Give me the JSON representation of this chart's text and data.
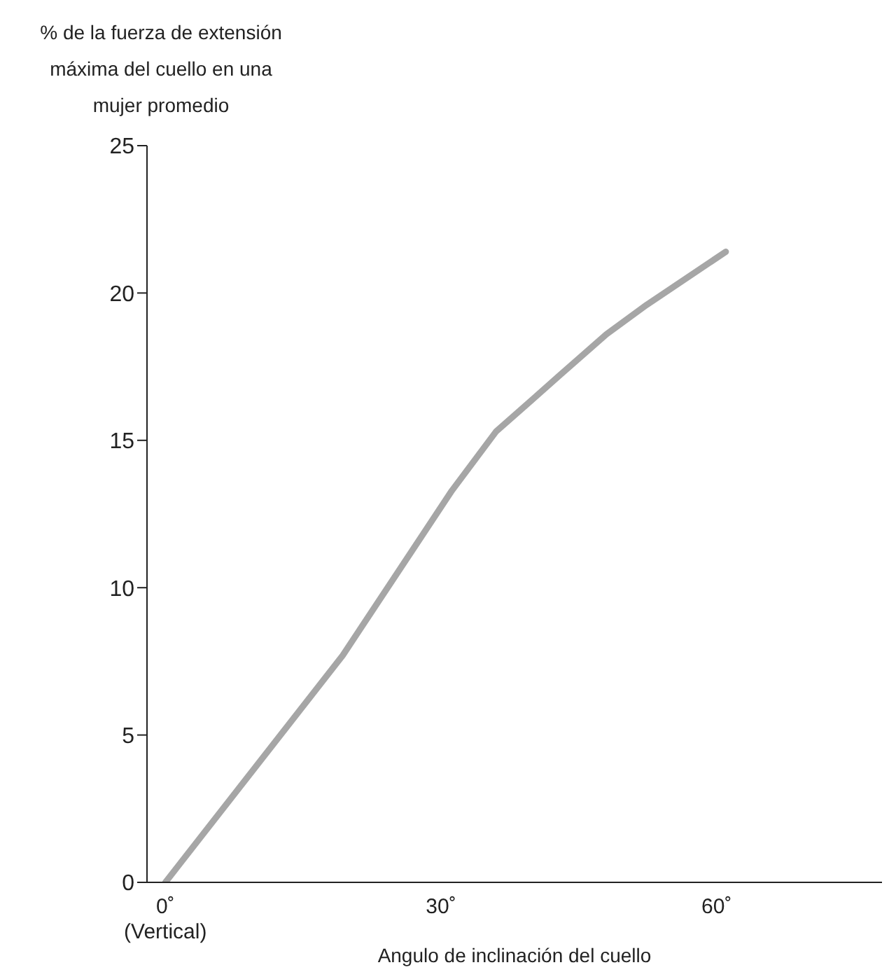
{
  "chart_data": {
    "type": "line",
    "ylabel": "% de la fuerza de extensión máxima del cuello en una mujer promedio",
    "xlabel": "Angulo de inclinación del cuello",
    "x": [
      0,
      19.3,
      31.2,
      36,
      42.9,
      48,
      52.4,
      61
    ],
    "series": [
      {
        "color": "#a6a6a6",
        "values": [
          0,
          7.7,
          13.3,
          15.3,
          17.2,
          18.6,
          19.6,
          21.4
        ]
      }
    ],
    "xlim": [
      -2,
      78
    ],
    "xticks": [
      {
        "value": 0,
        "label": "0˚\n(Vertical)"
      },
      {
        "value": 30,
        "label": "30˚"
      },
      {
        "value": 60,
        "label": "60˚"
      }
    ],
    "ylim": [
      0,
      25
    ],
    "yticks": [
      0,
      5,
      10,
      15,
      20,
      25
    ],
    "grid": false,
    "legend": false,
    "marker": "none",
    "line_style": "solid"
  }
}
